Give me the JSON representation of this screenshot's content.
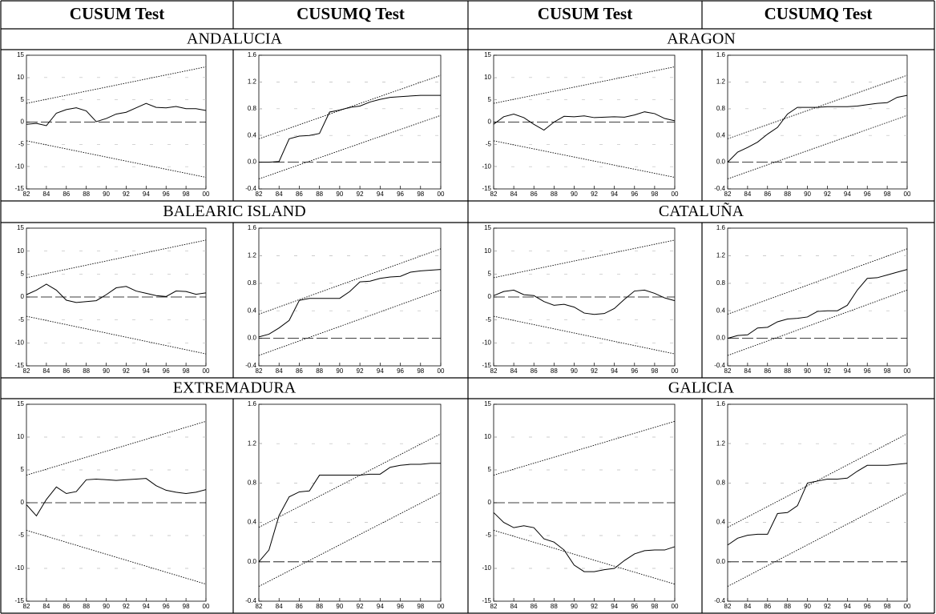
{
  "headers": [
    "CUSUM Test",
    "CUSUMQ Test",
    "CUSUM Test",
    "CUSUMQ Test"
  ],
  "regions": [
    "ANDALUCIA",
    "ARAGON",
    "BALEARIC ISLAND",
    "CATALUÑA",
    "EXTREMADURA",
    "GALICIA"
  ],
  "chart_data": [
    {
      "type": "line",
      "xlim": [
        82,
        100
      ],
      "xticks": [
        82,
        84,
        86,
        88,
        90,
        92,
        94,
        96,
        98,
        {
          "value": 100,
          "label": "00"
        }
      ],
      "ylim": [
        -15,
        15
      ],
      "yticks": [
        -15,
        -10,
        -5,
        0,
        5,
        10,
        15
      ],
      "grid": true,
      "reference_line": 0,
      "x": [
        82,
        83,
        84,
        85,
        86,
        87,
        88,
        89,
        90,
        91,
        92,
        93,
        94,
        95,
        96,
        97,
        98,
        99,
        100
      ],
      "series": [
        {
          "color": "#000000",
          "values": [
            -0.5,
            -0.3,
            -0.8,
            2.0,
            2.8,
            3.2,
            2.5,
            0.1,
            0.8,
            1.8,
            2.2,
            3.2,
            4.2,
            3.3,
            3.2,
            3.5,
            3.0,
            3.0,
            2.6
          ]
        },
        {
          "color": "#000000",
          "dash": "dotted",
          "x": [
            82,
            100
          ],
          "values": [
            4.2,
            12.4
          ]
        },
        {
          "color": "#000000",
          "dash": "dotted",
          "x": [
            82,
            100
          ],
          "values": [
            -4.2,
            -12.4
          ]
        }
      ]
    },
    {
      "type": "line",
      "xlim": [
        82,
        100
      ],
      "xticks": [
        82,
        84,
        86,
        88,
        90,
        92,
        94,
        96,
        98,
        {
          "value": 100,
          "label": "00"
        }
      ],
      "ylim": [
        -0.4,
        1.6
      ],
      "yticks": [
        -0.4,
        {
          "value": 0,
          "label": "0.0"
        },
        0.4,
        0.8,
        1.2,
        1.6
      ],
      "grid": true,
      "reference_line": 0,
      "x": [
        82,
        83,
        84,
        85,
        86,
        87,
        88,
        89,
        90,
        91,
        92,
        93,
        94,
        95,
        96,
        97,
        98,
        99,
        100
      ],
      "series": [
        {
          "color": "#000000",
          "values": [
            0.0,
            0.0,
            0.01,
            0.35,
            0.39,
            0.4,
            0.43,
            0.75,
            0.78,
            0.82,
            0.84,
            0.9,
            0.94,
            0.97,
            0.98,
            0.99,
            1.0,
            1.0,
            1.0
          ]
        },
        {
          "color": "#000000",
          "dash": "dotted",
          "x": [
            82,
            100
          ],
          "values": [
            0.35,
            1.3
          ]
        },
        {
          "color": "#000000",
          "dash": "dotted",
          "x": [
            82,
            100
          ],
          "values": [
            -0.25,
            0.7
          ]
        }
      ]
    },
    {
      "type": "line",
      "xlim": [
        82,
        100
      ],
      "xticks": [
        82,
        84,
        86,
        88,
        90,
        92,
        94,
        96,
        98,
        {
          "value": 100,
          "label": "00"
        }
      ],
      "ylim": [
        -15,
        15
      ],
      "yticks": [
        -15,
        -10,
        -5,
        0,
        5,
        10,
        15
      ],
      "grid": true,
      "reference_line": 0,
      "x": [
        82,
        83,
        84,
        85,
        86,
        87,
        88,
        89,
        90,
        91,
        92,
        93,
        94,
        95,
        96,
        97,
        98,
        99,
        100
      ],
      "series": [
        {
          "color": "#000000",
          "values": [
            -0.5,
            1.2,
            1.8,
            1.0,
            -0.5,
            -1.8,
            0.0,
            1.3,
            1.2,
            1.4,
            1.0,
            1.1,
            1.2,
            1.1,
            1.6,
            2.3,
            1.9,
            0.8,
            0.3
          ]
        },
        {
          "color": "#000000",
          "dash": "dotted",
          "x": [
            82,
            100
          ],
          "values": [
            4.2,
            12.4
          ]
        },
        {
          "color": "#000000",
          "dash": "dotted",
          "x": [
            82,
            100
          ],
          "values": [
            -4.2,
            -12.4
          ]
        }
      ]
    },
    {
      "type": "line",
      "xlim": [
        82,
        100
      ],
      "xticks": [
        82,
        84,
        86,
        88,
        90,
        92,
        94,
        96,
        98,
        {
          "value": 100,
          "label": "00"
        }
      ],
      "ylim": [
        -0.4,
        1.6
      ],
      "yticks": [
        -0.4,
        {
          "value": 0,
          "label": "0.0"
        },
        0.4,
        0.8,
        1.2,
        1.6
      ],
      "grid": true,
      "reference_line": 0,
      "x": [
        82,
        83,
        84,
        85,
        86,
        87,
        88,
        89,
        90,
        91,
        92,
        93,
        94,
        95,
        96,
        97,
        98,
        99,
        100
      ],
      "series": [
        {
          "color": "#000000",
          "values": [
            0.0,
            0.15,
            0.22,
            0.3,
            0.42,
            0.52,
            0.72,
            0.82,
            0.82,
            0.82,
            0.83,
            0.83,
            0.83,
            0.84,
            0.86,
            0.88,
            0.89,
            0.97,
            1.0
          ]
        },
        {
          "color": "#000000",
          "dash": "dotted",
          "x": [
            82,
            100
          ],
          "values": [
            0.35,
            1.3
          ]
        },
        {
          "color": "#000000",
          "dash": "dotted",
          "x": [
            82,
            100
          ],
          "values": [
            -0.25,
            0.7
          ]
        }
      ]
    },
    {
      "type": "line",
      "xlim": [
        82,
        100
      ],
      "xticks": [
        82,
        84,
        86,
        88,
        90,
        92,
        94,
        96,
        98,
        {
          "value": 100,
          "label": "00"
        }
      ],
      "ylim": [
        -15,
        15
      ],
      "yticks": [
        -15,
        -10,
        -5,
        0,
        5,
        10,
        15
      ],
      "grid": true,
      "reference_line": 0,
      "x": [
        82,
        83,
        84,
        85,
        86,
        87,
        88,
        89,
        90,
        91,
        92,
        93,
        94,
        95,
        96,
        97,
        98,
        99,
        100
      ],
      "series": [
        {
          "color": "#000000",
          "values": [
            0.5,
            1.5,
            2.8,
            1.5,
            -0.7,
            -1.2,
            -1.0,
            -0.8,
            0.5,
            2.0,
            2.3,
            1.3,
            0.8,
            0.3,
            0.1,
            1.3,
            1.2,
            0.6,
            0.9
          ]
        },
        {
          "color": "#000000",
          "dash": "dotted",
          "x": [
            82,
            100
          ],
          "values": [
            4.2,
            12.4
          ]
        },
        {
          "color": "#000000",
          "dash": "dotted",
          "x": [
            82,
            100
          ],
          "values": [
            -4.2,
            -12.4
          ]
        }
      ]
    },
    {
      "type": "line",
      "xlim": [
        82,
        100
      ],
      "xticks": [
        82,
        84,
        86,
        88,
        90,
        92,
        94,
        96,
        98,
        {
          "value": 100,
          "label": "00"
        }
      ],
      "ylim": [
        -0.4,
        1.6
      ],
      "yticks": [
        -0.4,
        {
          "value": 0,
          "label": "0.0"
        },
        0.4,
        0.8,
        1.2,
        1.6
      ],
      "grid": true,
      "reference_line": 0,
      "x": [
        82,
        83,
        84,
        85,
        86,
        87,
        88,
        89,
        90,
        91,
        92,
        93,
        94,
        95,
        96,
        97,
        98,
        99,
        100
      ],
      "series": [
        {
          "color": "#000000",
          "values": [
            0.02,
            0.06,
            0.15,
            0.26,
            0.55,
            0.58,
            0.58,
            0.58,
            0.58,
            0.68,
            0.82,
            0.83,
            0.87,
            0.89,
            0.9,
            0.96,
            0.98,
            0.99,
            1.0
          ]
        },
        {
          "color": "#000000",
          "dash": "dotted",
          "x": [
            82,
            100
          ],
          "values": [
            0.35,
            1.3
          ]
        },
        {
          "color": "#000000",
          "dash": "dotted",
          "x": [
            82,
            100
          ],
          "values": [
            -0.25,
            0.7
          ]
        }
      ]
    },
    {
      "type": "line",
      "xlim": [
        82,
        100
      ],
      "xticks": [
        82,
        84,
        86,
        88,
        90,
        92,
        94,
        96,
        98,
        {
          "value": 100,
          "label": "00"
        }
      ],
      "ylim": [
        -15,
        15
      ],
      "yticks": [
        -15,
        -10,
        -5,
        0,
        5,
        10,
        15
      ],
      "grid": true,
      "reference_line": 0,
      "x": [
        82,
        83,
        84,
        85,
        86,
        87,
        88,
        89,
        90,
        91,
        92,
        93,
        94,
        95,
        96,
        97,
        98,
        99,
        100
      ],
      "series": [
        {
          "color": "#000000",
          "values": [
            0.3,
            1.2,
            1.5,
            0.5,
            0.3,
            -1.0,
            -1.8,
            -1.6,
            -2.2,
            -3.5,
            -3.8,
            -3.6,
            -2.5,
            -0.5,
            1.3,
            1.5,
            0.8,
            -0.2,
            -0.8
          ]
        },
        {
          "color": "#000000",
          "dash": "dotted",
          "x": [
            82,
            100
          ],
          "values": [
            4.2,
            12.4
          ]
        },
        {
          "color": "#000000",
          "dash": "dotted",
          "x": [
            82,
            100
          ],
          "values": [
            -4.2,
            -12.4
          ]
        }
      ]
    },
    {
      "type": "line",
      "xlim": [
        82,
        100
      ],
      "xticks": [
        82,
        84,
        86,
        88,
        90,
        92,
        94,
        96,
        98,
        {
          "value": 100,
          "label": "00"
        }
      ],
      "ylim": [
        -0.4,
        1.6
      ],
      "yticks": [
        -0.4,
        {
          "value": 0,
          "label": "0.0"
        },
        0.4,
        0.8,
        1.2,
        1.6
      ],
      "grid": true,
      "reference_line": 0,
      "x": [
        82,
        83,
        84,
        85,
        86,
        87,
        88,
        89,
        90,
        91,
        92,
        93,
        94,
        95,
        96,
        97,
        98,
        99,
        100
      ],
      "series": [
        {
          "color": "#000000",
          "values": [
            0.0,
            0.04,
            0.05,
            0.15,
            0.16,
            0.24,
            0.28,
            0.29,
            0.31,
            0.39,
            0.4,
            0.4,
            0.48,
            0.7,
            0.87,
            0.88,
            0.92,
            0.96,
            1.0
          ]
        },
        {
          "color": "#000000",
          "dash": "dotted",
          "x": [
            82,
            100
          ],
          "values": [
            0.35,
            1.3
          ]
        },
        {
          "color": "#000000",
          "dash": "dotted",
          "x": [
            82,
            100
          ],
          "values": [
            -0.25,
            0.7
          ]
        }
      ]
    },
    {
      "type": "line",
      "xlim": [
        82,
        100
      ],
      "xticks": [
        82,
        84,
        86,
        88,
        90,
        92,
        94,
        96,
        98,
        {
          "value": 100,
          "label": "00"
        }
      ],
      "ylim": [
        -15,
        15
      ],
      "yticks": [
        -15,
        -10,
        -5,
        0,
        5,
        10,
        15
      ],
      "grid": true,
      "reference_line": 0,
      "x": [
        82,
        83,
        84,
        85,
        86,
        87,
        88,
        89,
        90,
        91,
        92,
        93,
        94,
        95,
        96,
        97,
        98,
        99,
        100
      ],
      "series": [
        {
          "color": "#000000",
          "values": [
            -0.3,
            -2.0,
            0.5,
            2.4,
            1.4,
            1.7,
            3.5,
            3.6,
            3.5,
            3.4,
            3.5,
            3.6,
            3.7,
            2.6,
            1.9,
            1.6,
            1.4,
            1.6,
            2.0
          ]
        },
        {
          "color": "#000000",
          "dash": "dotted",
          "x": [
            82,
            100
          ],
          "values": [
            4.2,
            12.4
          ]
        },
        {
          "color": "#000000",
          "dash": "dotted",
          "x": [
            82,
            100
          ],
          "values": [
            -4.2,
            -12.4
          ]
        }
      ]
    },
    {
      "type": "line",
      "xlim": [
        82,
        100
      ],
      "xticks": [
        82,
        84,
        86,
        88,
        90,
        92,
        94,
        96,
        98,
        {
          "value": 100,
          "label": "00"
        }
      ],
      "ylim": [
        -0.4,
        1.6
      ],
      "yticks": [
        -0.4,
        {
          "value": 0,
          "label": "0.0"
        },
        0.4,
        0.8,
        1.2,
        1.6
      ],
      "grid": true,
      "reference_line": 0,
      "x": [
        82,
        83,
        84,
        85,
        86,
        87,
        88,
        89,
        90,
        91,
        92,
        93,
        94,
        95,
        96,
        97,
        98,
        99,
        100
      ],
      "series": [
        {
          "color": "#000000",
          "values": [
            0.0,
            0.12,
            0.47,
            0.66,
            0.71,
            0.72,
            0.88,
            0.88,
            0.88,
            0.88,
            0.88,
            0.89,
            0.89,
            0.96,
            0.98,
            0.99,
            0.99,
            1.0,
            1.0
          ]
        },
        {
          "color": "#000000",
          "dash": "dotted",
          "x": [
            82,
            100
          ],
          "values": [
            0.35,
            1.3
          ]
        },
        {
          "color": "#000000",
          "dash": "dotted",
          "x": [
            82,
            100
          ],
          "values": [
            -0.25,
            0.7
          ]
        }
      ]
    },
    {
      "type": "line",
      "xlim": [
        82,
        100
      ],
      "xticks": [
        82,
        84,
        86,
        88,
        90,
        92,
        94,
        96,
        98,
        {
          "value": 100,
          "label": "00"
        }
      ],
      "ylim": [
        -15,
        15
      ],
      "yticks": [
        -15,
        -10,
        -5,
        0,
        5,
        10,
        15
      ],
      "grid": true,
      "reference_line": 0,
      "x": [
        82,
        83,
        84,
        85,
        86,
        87,
        88,
        89,
        90,
        91,
        92,
        93,
        94,
        95,
        96,
        97,
        98,
        99,
        100
      ],
      "series": [
        {
          "color": "#000000",
          "values": [
            -1.5,
            -3.0,
            -3.8,
            -3.5,
            -3.8,
            -5.5,
            -6.0,
            -7.2,
            -9.5,
            -10.5,
            -10.5,
            -10.2,
            -10.0,
            -8.8,
            -7.8,
            -7.3,
            -7.2,
            -7.2,
            -6.7
          ]
        },
        {
          "color": "#000000",
          "dash": "dotted",
          "x": [
            82,
            100
          ],
          "values": [
            4.2,
            12.4
          ]
        },
        {
          "color": "#000000",
          "dash": "dotted",
          "x": [
            82,
            100
          ],
          "values": [
            -4.2,
            -12.4
          ]
        }
      ]
    },
    {
      "type": "line",
      "xlim": [
        82,
        100
      ],
      "xticks": [
        82,
        84,
        86,
        88,
        90,
        92,
        94,
        96,
        98,
        {
          "value": 100,
          "label": "00"
        }
      ],
      "ylim": [
        -0.4,
        1.6
      ],
      "yticks": [
        -0.4,
        {
          "value": 0,
          "label": "0.0"
        },
        0.4,
        0.8,
        1.2,
        1.6
      ],
      "grid": true,
      "reference_line": 0,
      "x": [
        82,
        83,
        84,
        85,
        86,
        87,
        88,
        89,
        90,
        91,
        92,
        93,
        94,
        95,
        96,
        97,
        98,
        99,
        100
      ],
      "series": [
        {
          "color": "#000000",
          "values": [
            0.17,
            0.24,
            0.27,
            0.28,
            0.28,
            0.49,
            0.5,
            0.57,
            0.8,
            0.82,
            0.84,
            0.84,
            0.85,
            0.92,
            0.98,
            0.98,
            0.98,
            0.99,
            1.0
          ]
        },
        {
          "color": "#000000",
          "dash": "dotted",
          "x": [
            82,
            100
          ],
          "values": [
            0.35,
            1.3
          ]
        },
        {
          "color": "#000000",
          "dash": "dotted",
          "x": [
            82,
            100
          ],
          "values": [
            -0.25,
            0.7
          ]
        }
      ]
    }
  ]
}
